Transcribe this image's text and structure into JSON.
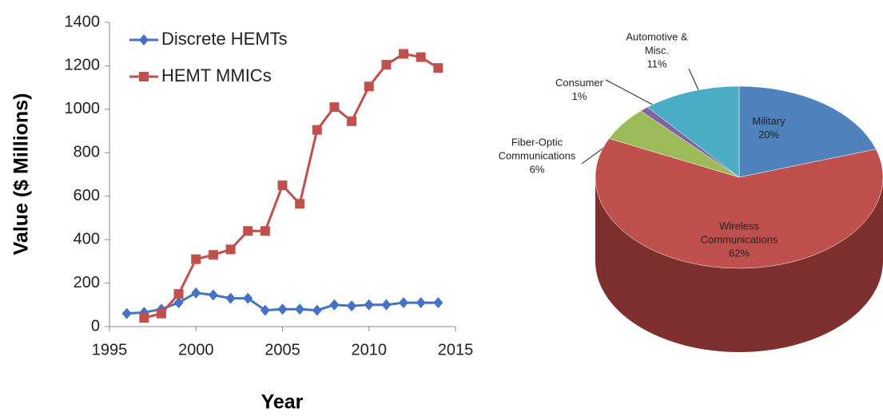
{
  "chart_data": [
    {
      "type": "line",
      "y_label": "Value ($ Millions)",
      "x_label": "Year",
      "x": [
        1996,
        1997,
        1998,
        1999,
        2000,
        2001,
        2002,
        2003,
        2004,
        2005,
        2006,
        2007,
        2008,
        2009,
        2010,
        2011,
        2012,
        2013,
        2014
      ],
      "series": [
        {
          "name": "Discrete HEMTs",
          "color": "#4472c4",
          "marker": "diamond",
          "values": [
            60,
            65,
            80,
            110,
            155,
            145,
            130,
            130,
            75,
            80,
            80,
            75,
            100,
            95,
            100,
            100,
            110,
            110,
            110
          ]
        },
        {
          "name": "HEMT MMICs",
          "color": "#c0504d",
          "marker": "square",
          "values": [
            null,
            40,
            60,
            150,
            310,
            330,
            355,
            440,
            440,
            650,
            565,
            905,
            1010,
            945,
            1105,
            1205,
            1255,
            1240,
            1190
          ]
        }
      ],
      "xlim": [
        1995,
        2015
      ],
      "xticks": [
        1995,
        2000,
        2005,
        2010,
        2015
      ],
      "ylim": [
        0,
        1400
      ],
      "yticks": [
        0,
        200,
        400,
        600,
        800,
        1000,
        1200,
        1400
      ],
      "legend": "top-left"
    },
    {
      "type": "pie",
      "categories": [
        "Military",
        "Wireless Communications",
        "Fiber-Optic Communications",
        "Consumer",
        "Automotive & Misc."
      ],
      "values": [
        20,
        62,
        6,
        1,
        11
      ],
      "value_labels": [
        "20%",
        "62%",
        "6%",
        "1%",
        "11%"
      ],
      "colors": [
        "#4f81bd",
        "#c0504d",
        "#9bbb59",
        "#8064a2",
        "#4bacc6"
      ],
      "side_colors": [
        "#36598a",
        "#7f2f2d",
        "#6a8339",
        "#57426f",
        "#2f7a8c"
      ]
    }
  ]
}
